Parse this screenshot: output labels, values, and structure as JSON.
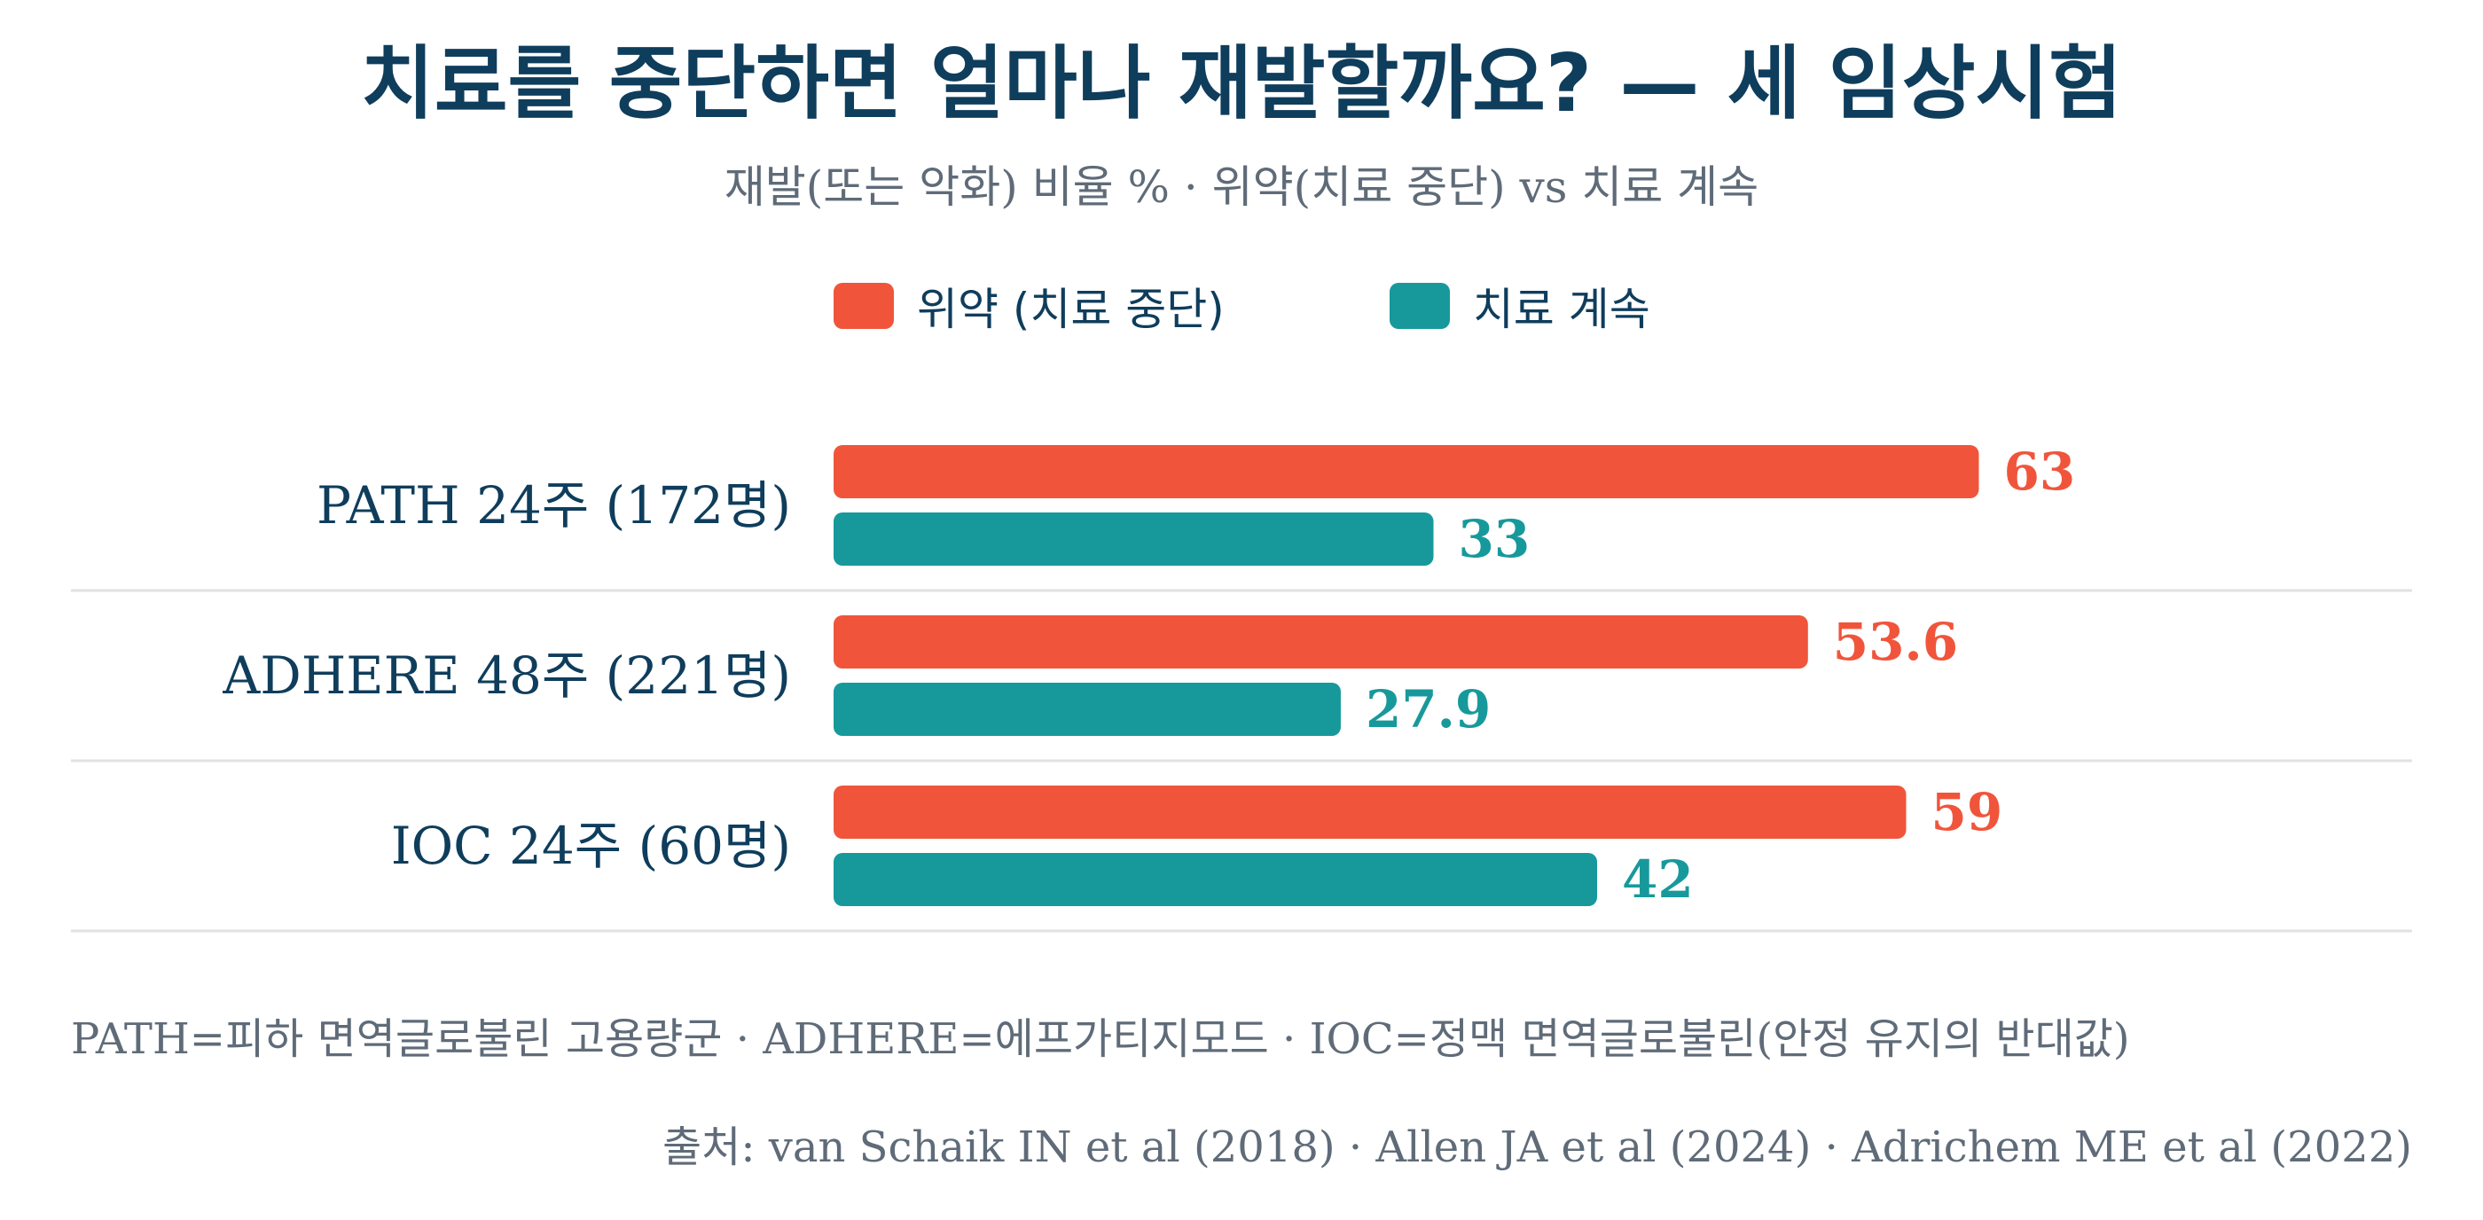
{
  "colors": {
    "series_0": "#f0553c",
    "series_1": "#17999b"
  },
  "chart_data": {
    "type": "bar",
    "orientation": "horizontal",
    "title": "치료를 중단하면 얼마나 재발할까요? — 세 임상시험",
    "subtitle": "재발(또는 악화) 비율 % · 위약(치료 중단) vs 치료 계속",
    "categories": [
      "PATH 24주 (172명)",
      "ADHERE 48주 (221명)",
      "IOC 24주 (60명)"
    ],
    "series": [
      {
        "name": "위약 (치료 중단)",
        "values": [
          63,
          53.6,
          59
        ],
        "labels": [
          "63",
          "53.6",
          "59"
        ]
      },
      {
        "name": "치료 계속",
        "values": [
          33,
          27.9,
          42
        ],
        "labels": [
          "33",
          "27.9",
          "42"
        ]
      }
    ],
    "xlim": [
      0,
      100
    ],
    "grid": false,
    "legend_position": "top"
  },
  "footnote": "PATH=피하 면역글로불린 고용량군 · ADHERE=에프가티지모드 · IOC=정맥 면역글로불린(안정 유지의 반대값)",
  "source": "출처: van Schaik IN et al (2018) · Allen JA et al (2024) · Adrichem ME et al (2022)"
}
